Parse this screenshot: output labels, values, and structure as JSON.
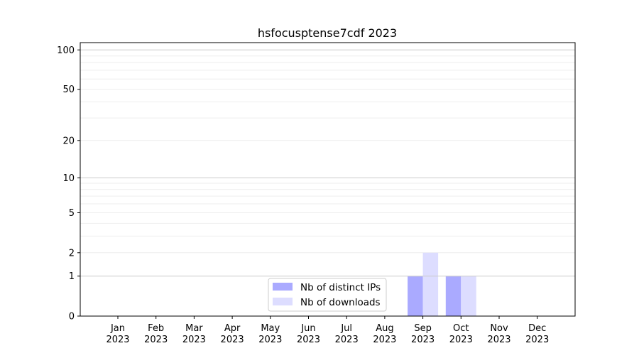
{
  "chart_data": {
    "type": "bar",
    "title": "hsfocusptense7cdf 2023",
    "xlabel": "",
    "ylabel": "",
    "yscale": "log(x+1)",
    "ylim": [
      0,
      113.6
    ],
    "yticks": [
      0,
      1,
      2,
      5,
      10,
      20,
      50,
      100
    ],
    "grid": true,
    "legend_position": "bottom-center",
    "categories": [
      "Jan\n2023",
      "Feb\n2023",
      "Mar\n2023",
      "Apr\n2023",
      "May\n2023",
      "Jun\n2023",
      "Jul\n2023",
      "Aug\n2023",
      "Sep\n2023",
      "Oct\n2023",
      "Nov\n2023",
      "Dec\n2023"
    ],
    "series": [
      {
        "name": "Nb of distinct IPs",
        "color": "#aaaaff",
        "values": [
          0,
          0,
          0,
          0,
          0,
          0,
          0,
          0,
          1,
          1,
          0,
          0
        ]
      },
      {
        "name": "Nb of downloads",
        "color": "#ddddff",
        "values": [
          0,
          0,
          0,
          0,
          0,
          0,
          0,
          0,
          2,
          1,
          0,
          0
        ]
      }
    ]
  }
}
